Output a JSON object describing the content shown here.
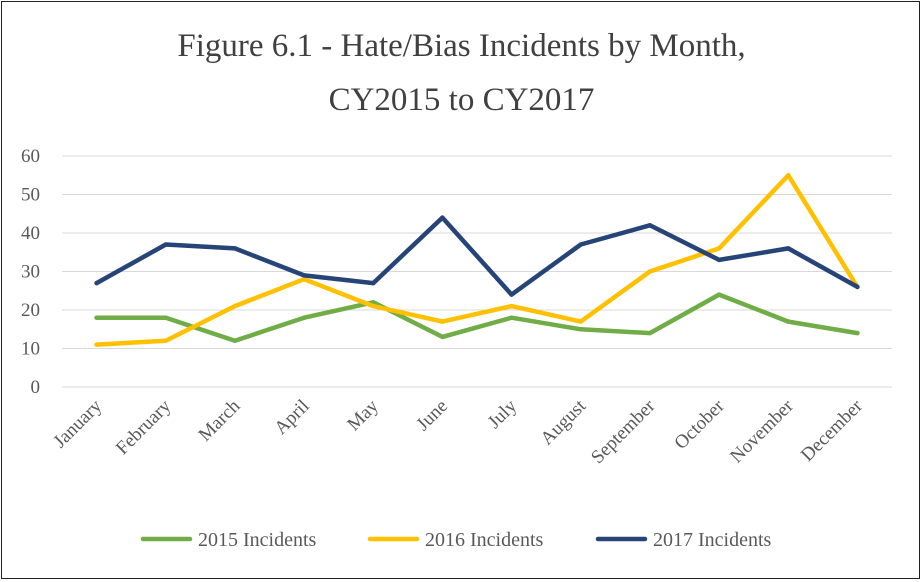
{
  "chart_data": {
    "type": "line",
    "title_lines": [
      "Figure 6.1  - Hate/Bias Incidents by Month,",
      "CY2015 to CY2017"
    ],
    "categories": [
      "January",
      "February",
      "March",
      "April",
      "May",
      "June",
      "July",
      "August",
      "September",
      "October",
      "November",
      "December"
    ],
    "series": [
      {
        "name": "2015 Incidents",
        "color": "#70ad47",
        "values": [
          18,
          18,
          12,
          18,
          22,
          13,
          18,
          15,
          14,
          24,
          17,
          14
        ]
      },
      {
        "name": "2016 Incidents",
        "color": "#ffc000",
        "values": [
          11,
          12,
          21,
          28,
          21,
          17,
          21,
          17,
          30,
          36,
          55,
          26
        ]
      },
      {
        "name": "2017 Incidents",
        "color": "#264478",
        "values": [
          27,
          37,
          36,
          29,
          27,
          44,
          24,
          37,
          42,
          33,
          36,
          26
        ]
      }
    ],
    "ylim": [
      0,
      60
    ],
    "yticks": [
      "0",
      "10",
      "20",
      "30",
      "40",
      "50",
      "60"
    ],
    "xlabel": "",
    "ylabel": "",
    "grid": true,
    "legend_position": "bottom"
  }
}
